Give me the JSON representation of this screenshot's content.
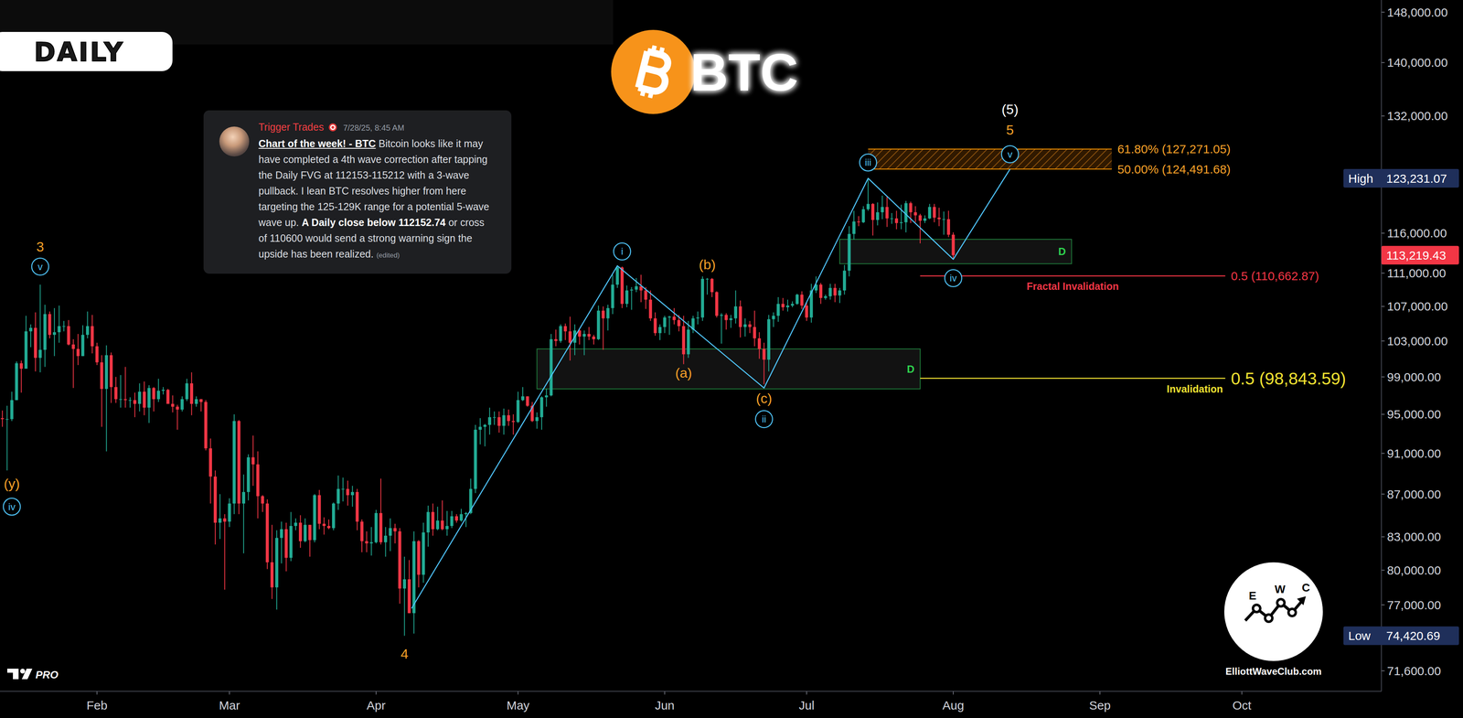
{
  "chart_data": {
    "type": "candlestick",
    "title": "BTC",
    "timeframe": "DAILY",
    "log": "y",
    "x": [
      12,
      13,
      14,
      15,
      16,
      17,
      18,
      19,
      20,
      21,
      22,
      23,
      24,
      25,
      26,
      27,
      28,
      29,
      30,
      31,
      32,
      33,
      34,
      35,
      36,
      37,
      38,
      39,
      40,
      41,
      42,
      43,
      44,
      45,
      46,
      47,
      48,
      49,
      50,
      51,
      52,
      53,
      54,
      55,
      56,
      57,
      58,
      59,
      60,
      61,
      62,
      63,
      64,
      65,
      66,
      67,
      68,
      69,
      70,
      71,
      72,
      73,
      74,
      75,
      76,
      77,
      78,
      79,
      80,
      81,
      82,
      83,
      84,
      85,
      86,
      87,
      88,
      89,
      90,
      91,
      92,
      93,
      94,
      95,
      96,
      97,
      98,
      99,
      100,
      101,
      102,
      103,
      104,
      105,
      106,
      107,
      108,
      109,
      110,
      111,
      112,
      113,
      114,
      115,
      116,
      117,
      118,
      119,
      120,
      121,
      122,
      123,
      124,
      125,
      126,
      127,
      128,
      129,
      130,
      131,
      132,
      133,
      134,
      135,
      136,
      137,
      138,
      139,
      140,
      141,
      142,
      143,
      144,
      145,
      146,
      147,
      148,
      149,
      150,
      151,
      152,
      153,
      154,
      155,
      156,
      157,
      158,
      159,
      160,
      161,
      162,
      163,
      164,
      165,
      166,
      167,
      168,
      169,
      170,
      171,
      172,
      173,
      174,
      175,
      176,
      177,
      178,
      179,
      180,
      181,
      182,
      183,
      184,
      185,
      186,
      187,
      188,
      189,
      190,
      191,
      192,
      193,
      194,
      195,
      196,
      197,
      198,
      199,
      200,
      201,
      202,
      203,
      204,
      205,
      206,
      207,
      208,
      209,
      210,
      211,
      212,
      213
    ],
    "open": [
      94600,
      94500,
      94500,
      96500,
      100500,
      99900,
      104100,
      104500,
      101100,
      102000,
      106100,
      103700,
      104000,
      104700,
      104700,
      102600,
      102100,
      101300,
      103700,
      104700,
      102400,
      100600,
      97700,
      101400,
      97900,
      96600,
      96600,
      96500,
      96500,
      96100,
      97400,
      95700,
      97800,
      96600,
      97500,
      97600,
      96100,
      95800,
      95500,
      96600,
      98300,
      96100,
      96600,
      96300,
      91500,
      88700,
      84300,
      84700,
      84400,
      86100,
      94300,
      86100,
      87200,
      90600,
      89900,
      86800,
      86100,
      80700,
      78500,
      82900,
      83700,
      81100,
      84000,
      84300,
      82600,
      84100,
      82700,
      86900,
      84200,
      84000,
      83800,
      86100,
      87500,
      87500,
      86900,
      87200,
      84400,
      82600,
      82400,
      82500,
      85200,
      82500,
      83100,
      83800,
      83500,
      78400,
      79200,
      76300,
      82600,
      79600,
      83400,
      85300,
      83700,
      84500,
      83700,
      84000,
      84900,
      84500,
      85100,
      85200,
      87500,
      93400,
      93700,
      93900,
      94700,
      94700,
      93800,
      94900,
      94300,
      94200,
      96500,
      96900,
      95900,
      94300,
      94700,
      96800,
      97000,
      103200,
      103000,
      104700,
      104100,
      102800,
      104200,
      103500,
      103800,
      103500,
      103200,
      106500,
      105600,
      106800,
      109600,
      111700,
      107300,
      108900,
      109000,
      109400,
      108900,
      107800,
      105600,
      103900,
      104600,
      105700,
      105800,
      105400,
      104700,
      101500,
      104300,
      105600,
      105700,
      110300,
      110300,
      108700,
      105900,
      106000,
      105400,
      105600,
      107000,
      104600,
      104900,
      104600,
      103300,
      102100,
      100900,
      105500,
      105900,
      107300,
      106900,
      107100,
      107300,
      108400,
      107100,
      105700,
      108900,
      109600,
      108000,
      108200,
      109200,
      108300,
      108900,
      111300,
      115900,
      117500,
      117400,
      119100,
      119800,
      117700,
      118700,
      119400,
      117900,
      117900,
      117300,
      117400,
      119900,
      118700,
      118300,
      117600,
      117900,
      119400,
      118000,
      117800,
      117800,
      115800
    ],
    "high": [
      95400,
      95900,
      97400,
      100700,
      100800,
      105900,
      104900,
      106300,
      109600,
      107200,
      106400,
      106800,
      107100,
      105300,
      105400,
      103200,
      103800,
      104800,
      106400,
      106000,
      102800,
      101400,
      102500,
      101700,
      99000,
      99200,
      100100,
      96800,
      97300,
      98300,
      98500,
      98100,
      97900,
      98800,
      97900,
      97700,
      97000,
      96000,
      96900,
      98800,
      99500,
      96900,
      96600,
      96500,
      92500,
      89300,
      87000,
      85100,
      86600,
      95000,
      94400,
      88900,
      90900,
      92800,
      91200,
      86900,
      86500,
      84100,
      83600,
      84400,
      84300,
      85300,
      84700,
      85000,
      84700,
      84100,
      87000,
      87400,
      84800,
      84600,
      86200,
      88800,
      88600,
      88300,
      87800,
      87500,
      84600,
      83500,
      83900,
      85500,
      88500,
      83900,
      84700,
      84200,
      83800,
      81200,
      80900,
      83500,
      82700,
      84300,
      85900,
      86100,
      85800,
      86400,
      85400,
      85400,
      85100,
      85600,
      85300,
      88500,
      93900,
      94600,
      94000,
      95700,
      95300,
      95300,
      95600,
      95500,
      95000,
      97400,
      97900,
      96900,
      96300,
      95200,
      96900,
      97700,
      103800,
      104300,
      104900,
      105000,
      105800,
      104900,
      104300,
      104200,
      104600,
      103700,
      107100,
      107000,
      107200,
      110800,
      111900,
      111800,
      109500,
      109300,
      110400,
      110800,
      109300,
      108900,
      106300,
      104900,
      105900,
      105900,
      106800,
      106000,
      105900,
      105300,
      105900,
      106400,
      110600,
      110400,
      110400,
      108800,
      106200,
      106200,
      106000,
      108900,
      107700,
      105600,
      105300,
      106500,
      104000,
      102800,
      106000,
      106300,
      108100,
      108000,
      107800,
      107600,
      108500,
      108800,
      107500,
      109700,
      110600,
      109800,
      108400,
      109700,
      109700,
      109200,
      112000,
      116900,
      118900,
      118200,
      119500,
      123231.07,
      119900,
      120000,
      120900,
      120800,
      118600,
      118900,
      119700,
      120200,
      120100,
      119500,
      118500,
      118300,
      119800,
      119800,
      119300,
      118800,
      118900,
      116100
    ],
    "low": [
      93700,
      89300,
      94300,
      96500,
      97300,
      99900,
      102300,
      99600,
      99500,
      100100,
      103300,
      101300,
      102800,
      104100,
      102500,
      97800,
      100300,
      101300,
      103300,
      101600,
      100300,
      93700,
      91200,
      96200,
      96200,
      95700,
      95700,
      95700,
      94700,
      95300,
      94900,
      94100,
      95300,
      96300,
      97100,
      96100,
      95200,
      93400,
      95300,
      96400,
      94900,
      95800,
      95300,
      91300,
      86100,
      82300,
      82800,
      78300,
      83900,
      85100,
      85100,
      81500,
      86400,
      87800,
      84700,
      85300,
      80100,
      77500,
      76600,
      80600,
      79900,
      80800,
      83600,
      82000,
      82500,
      81200,
      82500,
      83700,
      83200,
      83700,
      83600,
      85500,
      86300,
      85900,
      85800,
      83600,
      81600,
      81600,
      81300,
      82400,
      82300,
      81200,
      81700,
      82400,
      77100,
      74420.69,
      76300,
      74600,
      78500,
      78900,
      82100,
      83100,
      83600,
      83600,
      83100,
      83800,
      84300,
      84400,
      83900,
      85100,
      87100,
      91900,
      91700,
      92900,
      93900,
      93100,
      92900,
      93800,
      92900,
      94100,
      96400,
      95800,
      94200,
      93500,
      93400,
      95800,
      96900,
      102400,
      102800,
      103100,
      100800,
      101400,
      102600,
      101400,
      103100,
      102600,
      103100,
      102000,
      104200,
      106100,
      109200,
      106800,
      106900,
      106600,
      108700,
      107500,
      106700,
      105300,
      103600,
      103100,
      103900,
      103700,
      104900,
      104100,
      100400,
      101100,
      103900,
      104900,
      105300,
      108400,
      108100,
      105700,
      102700,
      104300,
      104500,
      105000,
      103400,
      103500,
      103900,
      102400,
      101000,
      98200,
      99600,
      104600,
      105200,
      106500,
      106400,
      106900,
      107200,
      106700,
      105300,
      105100,
      108600,
      107300,
      107800,
      107800,
      107500,
      107400,
      108400,
      110600,
      115200,
      116900,
      117300,
      118900,
      115700,
      117000,
      117800,
      116800,
      117200,
      116500,
      116500,
      116100,
      117300,
      117400,
      114700,
      117300,
      117800,
      117400,
      116900,
      115800,
      115500,
      112700
    ],
    "close": [
      94500,
      94500,
      96500,
      100500,
      99900,
      104100,
      104500,
      101100,
      102000,
      106100,
      103700,
      104000,
      104700,
      104700,
      102600,
      102100,
      101300,
      103700,
      104700,
      102400,
      100600,
      97700,
      101400,
      97900,
      96600,
      96600,
      96500,
      96500,
      96100,
      97400,
      95700,
      97800,
      96600,
      97500,
      97600,
      96100,
      95800,
      95500,
      96600,
      98300,
      96100,
      96600,
      96300,
      91500,
      88700,
      84300,
      84700,
      84400,
      86100,
      94300,
      86100,
      87200,
      90600,
      89900,
      86800,
      86100,
      80700,
      78500,
      82900,
      83700,
      81100,
      84000,
      84300,
      82600,
      84100,
      82700,
      86900,
      84200,
      84000,
      83800,
      86100,
      87500,
      87500,
      86900,
      87200,
      84400,
      82600,
      82400,
      82500,
      85200,
      82500,
      83100,
      83800,
      83500,
      78400,
      79200,
      76300,
      82600,
      79600,
      83400,
      85300,
      83700,
      84500,
      83700,
      84000,
      84900,
      84500,
      85100,
      85200,
      87500,
      93400,
      93700,
      93900,
      94700,
      94700,
      93800,
      94900,
      94300,
      94200,
      96500,
      96900,
      95900,
      94300,
      94700,
      96800,
      97000,
      103200,
      103000,
      104700,
      104100,
      102800,
      104200,
      103500,
      103800,
      103500,
      103200,
      106500,
      105600,
      106800,
      109600,
      111700,
      107300,
      108900,
      109000,
      109400,
      108900,
      107800,
      105600,
      103900,
      104600,
      105700,
      105800,
      105400,
      104700,
      101500,
      104300,
      105600,
      105700,
      110300,
      110300,
      108700,
      105900,
      106000,
      105400,
      105600,
      107000,
      104600,
      104900,
      104600,
      103300,
      102100,
      100900,
      105500,
      105900,
      107300,
      106900,
      107100,
      107300,
      108400,
      107100,
      105700,
      108900,
      109600,
      108000,
      108200,
      109200,
      108300,
      108900,
      111300,
      115900,
      117500,
      117400,
      119100,
      119800,
      117700,
      118700,
      119400,
      117900,
      117900,
      117300,
      117400,
      119900,
      118700,
      118300,
      117600,
      117900,
      119400,
      118000,
      117800,
      117800,
      115800,
      113219.43
    ],
    "xlim": [
      11.5,
      303.5
    ],
    "xticks": [
      {
        "value": 32,
        "label": "Feb"
      },
      {
        "value": 60,
        "label": "Mar"
      },
      {
        "value": 91,
        "label": "Apr"
      },
      {
        "value": 121,
        "label": "May"
      },
      {
        "value": 152,
        "label": "Jun"
      },
      {
        "value": 182,
        "label": "Jul"
      },
      {
        "value": 213,
        "label": "Aug"
      },
      {
        "value": 244,
        "label": "Sep"
      },
      {
        "value": 274,
        "label": "Oct"
      }
    ],
    "ylim": [
      70000,
      150000
    ],
    "yticks": [
      {
        "value": 71600,
        "label": "71,600.00"
      },
      {
        "value": 77000,
        "label": "77,000.00"
      },
      {
        "value": 80000,
        "label": "80,000.00"
      },
      {
        "value": 83000,
        "label": "83,000.00"
      },
      {
        "value": 87000,
        "label": "87,000.00"
      },
      {
        "value": 91000,
        "label": "91,000.00"
      },
      {
        "value": 95000,
        "label": "95,000.00"
      },
      {
        "value": 99000,
        "label": "99,000.00"
      },
      {
        "value": 103000,
        "label": "103,000.00"
      },
      {
        "value": 107000,
        "label": "107,000.00"
      },
      {
        "value": 111000,
        "label": "111,000.00"
      },
      {
        "value": 116000,
        "label": "116,000.00"
      },
      {
        "value": 132000,
        "label": "132,000.00"
      },
      {
        "value": 140000,
        "label": "140,000.00"
      },
      {
        "value": 148000,
        "label": "148,000.00"
      }
    ],
    "price_labels": [
      {
        "name": "High",
        "value": 123231.07,
        "label": "123,231.07",
        "color": "navy"
      },
      {
        "value": 113219.43,
        "label": "113,219.43",
        "color": "red"
      },
      {
        "name": "Low",
        "value": 74420.69,
        "label": "74,420.69",
        "color": "navy"
      }
    ],
    "wave_path": {
      "x": [
        98.5,
        142,
        173,
        195,
        213,
        225
      ],
      "y": [
        76700,
        111900,
        97800,
        123231.07,
        112700,
        124490
      ]
    },
    "wave_labels": [
      {
        "text": "3",
        "x": 20,
        "y": 114300,
        "color": "orange"
      },
      {
        "text": "(y)",
        "x": 14,
        "y": 88000,
        "color": "orange"
      },
      {
        "text": "4",
        "x": 97,
        "y": 72950,
        "color": "orange"
      },
      {
        "text": "(a)",
        "x": 156,
        "y": 99460,
        "color": "orange"
      },
      {
        "text": "(b)",
        "x": 161,
        "y": 112070,
        "color": "orange"
      },
      {
        "text": "(c)",
        "x": 173,
        "y": 96700,
        "color": "orange"
      },
      {
        "text": "5",
        "x": 225,
        "y": 130000,
        "color": "orange"
      },
      {
        "text": "(5)",
        "x": 225,
        "y": 133000,
        "color": "white"
      }
    ],
    "circled_labels": [
      {
        "text": "iv",
        "x": 14,
        "y": 85800
      },
      {
        "text": "v",
        "x": 20,
        "y": 111800
      },
      {
        "text": "i",
        "x": 143,
        "y": 113680
      },
      {
        "text": "ii",
        "x": 173,
        "y": 94500
      },
      {
        "text": "iii",
        "x": 195,
        "y": 125400
      },
      {
        "text": "iv",
        "x": 213,
        "y": 110390
      },
      {
        "text": "v",
        "x": 225,
        "y": 126550
      }
    ],
    "zones": [
      {
        "label": "D",
        "x": [
          125,
          206
        ],
        "y": [
          97700,
          102100
        ]
      },
      {
        "label": "D",
        "x": [
          189,
          238
        ],
        "y": [
          112153,
          115212
        ]
      }
    ],
    "fib_zone": {
      "x": [
        195,
        246.5
      ],
      "levels": [
        {
          "value": 124491.68,
          "label": "50.00% (124,491.68)"
        },
        {
          "value": 127271.05,
          "label": "61.80% (127,271.05)"
        }
      ]
    },
    "levels": [
      {
        "name": "Fractal Invalidation",
        "value": 110662.87,
        "label": "0.5 (110,662.87)",
        "x": [
          206,
          270.5
        ],
        "color": "red"
      },
      {
        "name": "Invalidation",
        "value": 98843.59,
        "label": "0.5 (98,843.59)",
        "x": [
          206,
          270.5
        ],
        "color": "yellow"
      }
    ],
    "message": {
      "author": "Trigger Trades",
      "time": "7/28/25, 8:45 AM",
      "heading": "Chart of the week! - BTC",
      "body": "Bitcoin looks like it may have completed a 4th wave correction after tapping the Daily FVG at 112153-115212 with a 3-wave pullback. I lean BTC resolves higher from here targeting the 125-129K range for a potential 5-wave wave up.",
      "warning": "A Daily close below 112152.74",
      "body_end": "or cross of 110600 would send a strong warning sign the upside has been realized.",
      "edited": "(edited)"
    },
    "watermark": {
      "site": "ElliottWaveClub.com",
      "letters": [
        "E",
        "W",
        "C"
      ]
    },
    "platform": "PRO"
  }
}
